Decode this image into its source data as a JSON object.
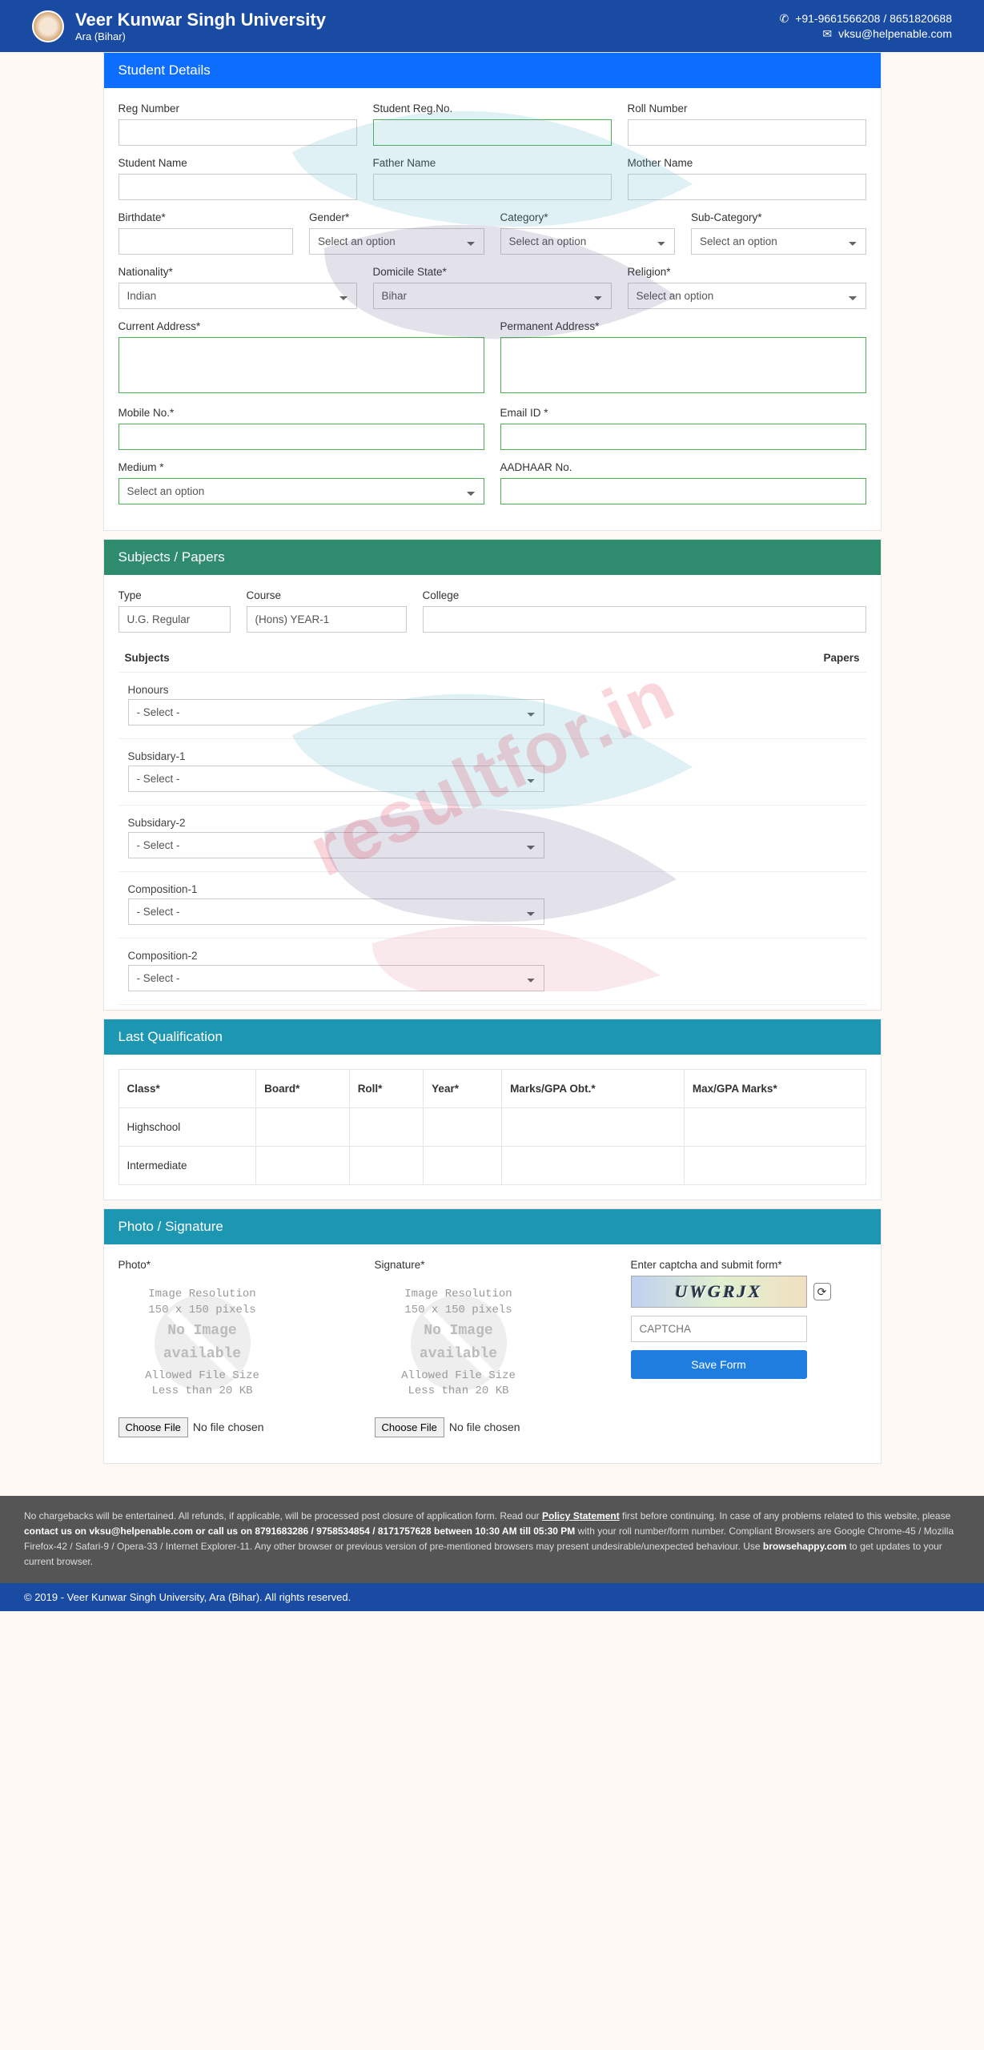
{
  "header": {
    "university": "Veer Kunwar Singh University",
    "location": "Ara (Bihar)",
    "phone": "+91-9661566208 / 8651820688",
    "email": "vksu@helpenable.com"
  },
  "watermark": "resultfor.in",
  "sections": {
    "student": "Student Details",
    "subjects": "Subjects / Papers",
    "lastqual": "Last Qualification",
    "photo": "Photo / Signature"
  },
  "labels": {
    "reg_number": "Reg Number",
    "student_regno": "Student Reg.No.",
    "roll_number": "Roll Number",
    "student_name": "Student Name",
    "father_name": "Father Name",
    "mother_name": "Mother Name",
    "birthdate": "Birthdate*",
    "gender": "Gender*",
    "category": "Category*",
    "subcategory": "Sub-Category*",
    "nationality": "Nationality*",
    "domicile": "Domicile State*",
    "religion": "Religion*",
    "curr_addr": "Current Address*",
    "perm_addr": "Permanent Address*",
    "mobile": "Mobile No.*",
    "email": "Email ID *",
    "medium": "Medium *",
    "aadhaar": "AADHAAR No.",
    "type": "Type",
    "course": "Course",
    "college": "College",
    "subjects_col": "Subjects",
    "papers_col": "Papers",
    "photo_lbl": "Photo*",
    "signature_lbl": "Signature*",
    "captcha_lbl": "Enter captcha and submit form*",
    "choose_file": "Choose File",
    "no_file": "No file chosen",
    "save_form": "Save Form"
  },
  "placeholders": {
    "select_option": "Select an option",
    "select_dash": "- Select -",
    "captcha": "CAPTCHA"
  },
  "values": {
    "nationality": "Indian",
    "domicile": "Bihar",
    "type": "U.G. Regular",
    "course": "(Hons) YEAR-1"
  },
  "subject_groups": [
    "Honours",
    "Subsidary-1",
    "Subsidary-2",
    "Composition-1",
    "Composition-2"
  ],
  "qual": {
    "cols": [
      "Class*",
      "Board*",
      "Roll*",
      "Year*",
      "Marks/GPA Obt.*",
      "Max/GPA Marks*"
    ],
    "rows": [
      "Highschool",
      "Intermediate"
    ]
  },
  "upload_box": {
    "line1": "Image Resolution",
    "line2": "150 x 150 pixels",
    "big1": "No Image",
    "big2": "available",
    "line3": "Allowed File Size",
    "line4": "Less than 20 KB"
  },
  "captcha_text": "UWGRJX",
  "footer_note": {
    "t1": "No chargebacks will be entertained. All refunds, if applicable, will be processed post closure of application form. Read our ",
    "policy": "Policy Statement",
    "t2": " first before continuing. In case of any problems related to this website, please ",
    "contact": "contact us on vksu@helpenable.com or call us on 8791683286 / 9758534854 / 8171757628 between 10:30 AM till 05:30 PM",
    "t3": " with your roll number/form number. Compliant Browsers are Google Chrome-45 / Mozilla Firefox-42 / Safari-9 / Opera-33 / Internet Explorer-11. Any other browser or previous version of pre-mentioned browsers may present undesirable/unexpected behaviour. Use ",
    "bh": "browsehappy.com",
    "t4": " to get updates to your current browser."
  },
  "copyright": "© 2019 - Veer Kunwar Singh University, Ara (Bihar). All rights reserved."
}
